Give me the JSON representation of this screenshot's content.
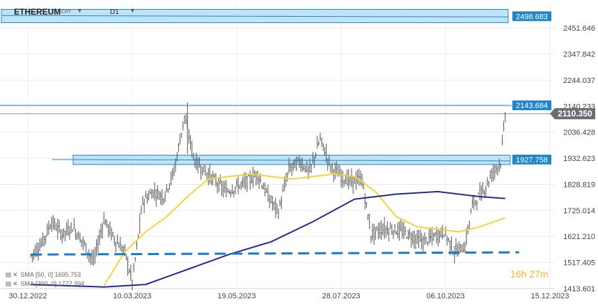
{
  "header": {
    "symbol": "ETHEREUM",
    "symbol_suffix": "CRT",
    "timeframe": "D1"
  },
  "timer": {
    "value": "16h 27m"
  },
  "indicators": [
    {
      "label": "SMA [50, 0]",
      "value": "1695.753",
      "color": "#f5d33a"
    },
    {
      "label": "SMA [200, 0]",
      "value": "1772.394",
      "color": "#232b8c"
    }
  ],
  "chart_data": {
    "type": "candlestick",
    "title": "",
    "xlabel": "",
    "ylabel": "",
    "x_ticks": [
      "30.12.2022",
      "10.03.2023",
      "19.05.2023",
      "28.07.2023",
      "06.10.2023",
      "15.12.2023"
    ],
    "y_ticks": [
      "2451.646",
      "2347.842",
      "2244.037",
      "2140.233",
      "2036.428",
      "1932.623",
      "1828.819",
      "1725.014",
      "1621.210",
      "1517.405",
      "1413.601"
    ],
    "ylim": [
      1413.601,
      2549.5
    ],
    "current_price": "2110.350",
    "levels": [
      {
        "label": "2498.683",
        "value": 2498.683,
        "zone": [
          2473,
          2526
        ]
      },
      {
        "label": "2143.684",
        "value": 2143.684
      },
      {
        "label": "1927.758",
        "value": 1927.758,
        "zone": [
          1908,
          1945
        ]
      }
    ],
    "support_line": {
      "style": "dashed",
      "start": [
        "2023-01-01",
        1549
      ],
      "end": [
        "2023-11-15",
        1558
      ]
    },
    "price_path": [
      [
        "2023-01-01",
        1545
      ],
      [
        "2023-01-08",
        1590
      ],
      [
        "2023-01-15",
        1680
      ],
      [
        "2023-01-22",
        1630
      ],
      [
        "2023-01-29",
        1660
      ],
      [
        "2023-02-05",
        1600
      ],
      [
        "2023-02-12",
        1520
      ],
      [
        "2023-02-19",
        1690
      ],
      [
        "2023-02-26",
        1610
      ],
      [
        "2023-03-05",
        1560
      ],
      [
        "2023-03-10",
        1440
      ],
      [
        "2023-03-17",
        1760
      ],
      [
        "2023-03-24",
        1800
      ],
      [
        "2023-03-31",
        1780
      ],
      [
        "2023-04-07",
        1880
      ],
      [
        "2023-04-14",
        2100
      ],
      [
        "2023-04-21",
        1920
      ],
      [
        "2023-04-28",
        1880
      ],
      [
        "2023-05-05",
        1840
      ],
      [
        "2023-05-12",
        1800
      ],
      [
        "2023-05-19",
        1820
      ],
      [
        "2023-05-26",
        1840
      ],
      [
        "2023-06-02",
        1870
      ],
      [
        "2023-06-09",
        1780
      ],
      [
        "2023-06-16",
        1720
      ],
      [
        "2023-06-23",
        1890
      ],
      [
        "2023-06-30",
        1920
      ],
      [
        "2023-07-07",
        1880
      ],
      [
        "2023-07-14",
        2010
      ],
      [
        "2023-07-21",
        1900
      ],
      [
        "2023-07-28",
        1860
      ],
      [
        "2023-08-04",
        1840
      ],
      [
        "2023-08-11",
        1850
      ],
      [
        "2023-08-17",
        1630
      ],
      [
        "2023-08-24",
        1650
      ],
      [
        "2023-08-31",
        1650
      ],
      [
        "2023-09-07",
        1640
      ],
      [
        "2023-09-14",
        1620
      ],
      [
        "2023-09-21",
        1600
      ],
      [
        "2023-09-28",
        1620
      ],
      [
        "2023-10-05",
        1640
      ],
      [
        "2023-10-12",
        1560
      ],
      [
        "2023-10-19",
        1580
      ],
      [
        "2023-10-24",
        1750
      ],
      [
        "2023-10-31",
        1800
      ],
      [
        "2023-11-07",
        1880
      ],
      [
        "2023-11-12",
        1920
      ],
      [
        "2023-11-15",
        2110
      ]
    ],
    "series": [
      {
        "name": "SMA [50, 0]",
        "color": "#f5d33a",
        "points": [
          [
            "2023-02-19",
            1425
          ],
          [
            "2023-03-05",
            1560
          ],
          [
            "2023-03-19",
            1640
          ],
          [
            "2023-04-02",
            1700
          ],
          [
            "2023-04-16",
            1780
          ],
          [
            "2023-04-30",
            1850
          ],
          [
            "2023-05-14",
            1860
          ],
          [
            "2023-05-28",
            1870
          ],
          [
            "2023-06-11",
            1860
          ],
          [
            "2023-06-25",
            1850
          ],
          [
            "2023-07-09",
            1860
          ],
          [
            "2023-07-23",
            1870
          ],
          [
            "2023-08-06",
            1860
          ],
          [
            "2023-08-20",
            1800
          ],
          [
            "2023-09-03",
            1700
          ],
          [
            "2023-09-17",
            1660
          ],
          [
            "2023-10-01",
            1650
          ],
          [
            "2023-10-15",
            1640
          ],
          [
            "2023-10-29",
            1660
          ],
          [
            "2023-11-15",
            1695.753
          ]
        ]
      },
      {
        "name": "SMA [200, 0]",
        "color": "#232b8c",
        "points": [
          [
            "2023-01-01",
            1430
          ],
          [
            "2023-02-19",
            1420
          ],
          [
            "2023-03-19",
            1430
          ],
          [
            "2023-04-16",
            1490
          ],
          [
            "2023-05-14",
            1550
          ],
          [
            "2023-06-11",
            1600
          ],
          [
            "2023-07-09",
            1680
          ],
          [
            "2023-08-06",
            1770
          ],
          [
            "2023-09-03",
            1790
          ],
          [
            "2023-10-01",
            1800
          ],
          [
            "2023-10-29",
            1780
          ],
          [
            "2023-11-15",
            1772.394
          ]
        ]
      }
    ]
  }
}
